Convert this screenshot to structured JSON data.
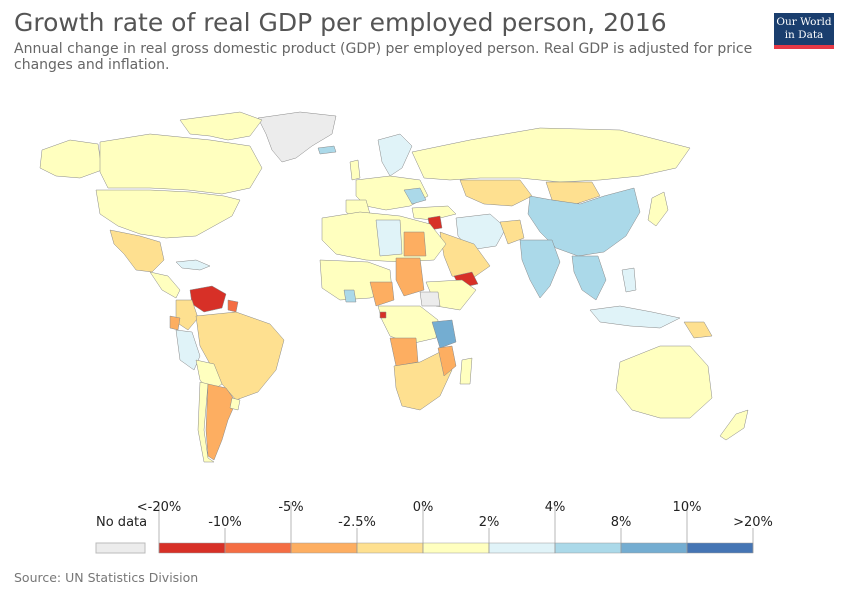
{
  "header": {
    "title": "Growth rate of real GDP per employed person, 2016",
    "subtitle": "Annual change in real gross domestic product (GDP) per employed person. Real GDP is adjusted for price changes and inflation.",
    "logo_line1": "Our World",
    "logo_line2": "in Data"
  },
  "legend": {
    "no_data_label": "No data",
    "no_data_color": "#ececec",
    "bins": [
      {
        "color": "#d73027"
      },
      {
        "color": "#f46d43"
      },
      {
        "color": "#fdae61"
      },
      {
        "color": "#fee090"
      },
      {
        "color": "#ffffbf"
      },
      {
        "color": "#e0f3f8"
      },
      {
        "color": "#abd9e9"
      },
      {
        "color": "#74add1"
      },
      {
        "color": "#4575b4"
      }
    ],
    "labels": [
      "<-20%",
      "-10%",
      "-5%",
      "-2.5%",
      "0%",
      "2%",
      "4%",
      "8%",
      "10%",
      ">20%"
    ]
  },
  "footer": {
    "source": "Source: UN Statistics Division"
  }
}
